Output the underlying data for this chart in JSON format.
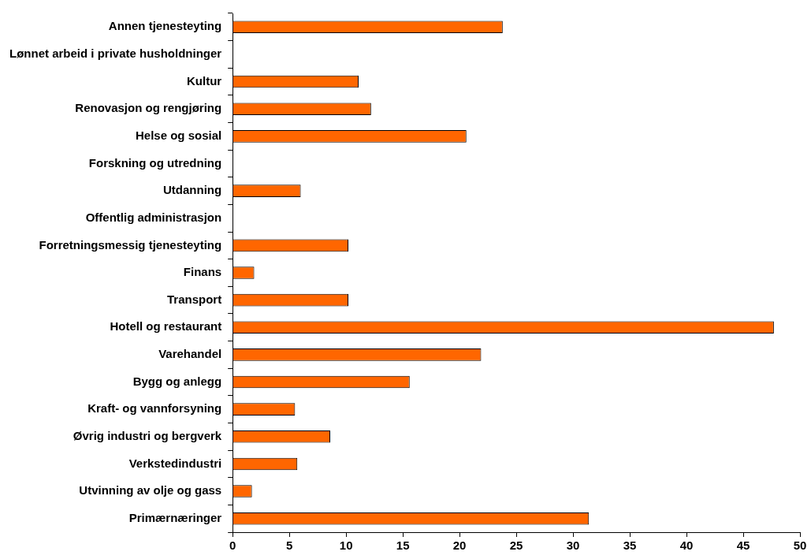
{
  "chart_data": {
    "type": "bar",
    "orientation": "horizontal",
    "categories": [
      "Annen tjenesteyting",
      "Lønnet arbeid i private husholdninger",
      "Kultur",
      "Renovasjon og rengjøring",
      "Helse og sosial",
      "Forskning og utredning",
      "Utdanning",
      "Offentlig administrasjon",
      "Forretningsmessig tjenesteyting",
      "Finans",
      "Transport",
      "Hotell og restaurant",
      "Varehandel",
      "Bygg og anlegg",
      "Kraft- og vannforsyning",
      "Øvrig industri og bergverk",
      "Verkstedindustri",
      "Utvinning av olje og gass",
      "Primærnæringer"
    ],
    "values": [
      23.8,
      null,
      11.1,
      12.2,
      20.6,
      null,
      6.0,
      null,
      10.2,
      1.9,
      10.2,
      47.7,
      21.9,
      15.6,
      5.5,
      8.6,
      5.7,
      1.7,
      31.4
    ],
    "color": "#ff6600",
    "xlim": [
      0,
      50
    ],
    "xticks": [
      0,
      5,
      10,
      15,
      20,
      25,
      30,
      35,
      40,
      45,
      50
    ],
    "grid": false,
    "legend": false
  }
}
